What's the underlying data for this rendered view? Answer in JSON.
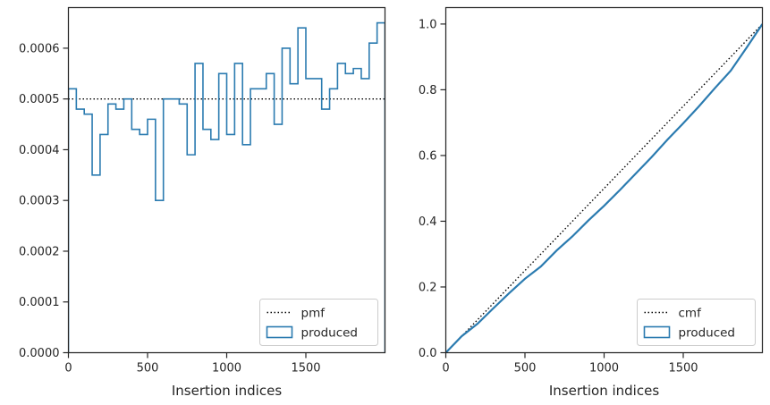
{
  "colors": {
    "series": "#2b7bb0",
    "reference": "#000000",
    "axes": "#262626",
    "legend_border": "#cccccc"
  },
  "chart_data": [
    {
      "type": "histogram-step",
      "xlabel": "Insertion indices",
      "ylabel": "",
      "xlim": [
        0,
        2000
      ],
      "ylim": [
        0,
        0.00068
      ],
      "xticks": [
        {
          "value": 0,
          "label": "0"
        },
        {
          "value": 500,
          "label": "500"
        },
        {
          "value": 1000,
          "label": "1000"
        },
        {
          "value": 1500,
          "label": "1500"
        }
      ],
      "yticks": [
        {
          "value": 0,
          "label": "0.0000"
        },
        {
          "value": 0.0001,
          "label": "0.0001"
        },
        {
          "value": 0.0002,
          "label": "0.0002"
        },
        {
          "value": 0.0003,
          "label": "0.0003"
        },
        {
          "value": 0.0004,
          "label": "0.0004"
        },
        {
          "value": 0.0005,
          "label": "0.0005"
        },
        {
          "value": 0.0006,
          "label": "0.0006"
        }
      ],
      "reference": {
        "name": "pmf",
        "y": 0.0005
      },
      "series": [
        {
          "name": "produced",
          "bin_edges": [
            0,
            50,
            100,
            150,
            200,
            250,
            300,
            350,
            400,
            450,
            500,
            550,
            600,
            650,
            700,
            750,
            800,
            850,
            900,
            950,
            1000,
            1050,
            1100,
            1150,
            1200,
            1250,
            1300,
            1350,
            1400,
            1450,
            1500,
            1550,
            1600,
            1650,
            1700,
            1750,
            1800,
            1850,
            1900,
            1950,
            2000
          ],
          "values": [
            0.00052,
            0.00048,
            0.00047,
            0.00035,
            0.00043,
            0.00049,
            0.00048,
            0.0005,
            0.00044,
            0.00043,
            0.00046,
            0.0003,
            0.0005,
            0.0005,
            0.00049,
            0.00039,
            0.00057,
            0.00044,
            0.00042,
            0.00055,
            0.00043,
            0.00057,
            0.00041,
            0.00052,
            0.00052,
            0.00055,
            0.00045,
            0.0006,
            0.00053,
            0.00064,
            0.00054,
            0.00054,
            0.00048,
            0.00052,
            0.00057,
            0.00055,
            0.00056,
            0.00054,
            0.00061,
            0.00065
          ]
        }
      ],
      "legend": {
        "position": "bottom-right",
        "entries": [
          "pmf",
          "produced"
        ]
      }
    },
    {
      "type": "line",
      "xlabel": "Insertion indices",
      "ylabel": "",
      "xlim": [
        0,
        2000
      ],
      "ylim": [
        0,
        1.05
      ],
      "xticks": [
        {
          "value": 0,
          "label": "0"
        },
        {
          "value": 500,
          "label": "500"
        },
        {
          "value": 1000,
          "label": "1000"
        },
        {
          "value": 1500,
          "label": "1500"
        }
      ],
      "yticks": [
        {
          "value": 0,
          "label": "0.0"
        },
        {
          "value": 0.2,
          "label": "0.2"
        },
        {
          "value": 0.4,
          "label": "0.4"
        },
        {
          "value": 0.6,
          "label": "0.6"
        },
        {
          "value": 0.8,
          "label": "0.8"
        },
        {
          "value": 1.0,
          "label": "1.0"
        }
      ],
      "reference": {
        "name": "cmf",
        "x": [
          0,
          2000
        ],
        "y": [
          0,
          1.0
        ]
      },
      "series": [
        {
          "name": "produced",
          "x": [
            0,
            100,
            200,
            300,
            400,
            500,
            600,
            700,
            800,
            900,
            1000,
            1100,
            1200,
            1300,
            1400,
            1500,
            1600,
            1700,
            1800,
            1900,
            2000
          ],
          "y": [
            0,
            0.05,
            0.088,
            0.135,
            0.181,
            0.225,
            0.262,
            0.311,
            0.354,
            0.402,
            0.447,
            0.495,
            0.545,
            0.595,
            0.648,
            0.698,
            0.75,
            0.805,
            0.858,
            0.928,
            1.0
          ]
        }
      ],
      "legend": {
        "position": "bottom-right",
        "entries": [
          "cmf",
          "produced"
        ]
      }
    }
  ]
}
